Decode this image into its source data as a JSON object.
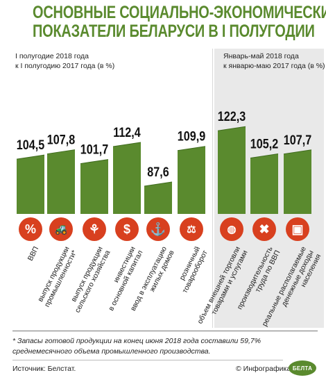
{
  "title_line1": "ОСНОВНЫЕ СОЦИАЛЬНО-ЭКОНОМИЧЕСКИЕ",
  "title_line2": "ПОКАЗАТЕЛИ БЕЛАРУСИ В I ПОЛУГОДИИ",
  "group_left_line1": "I полугодие 2018 года",
  "group_left_line2": "к I полугодию 2017 года (в %)",
  "group_right_line1": "Январь-май 2018 года",
  "group_right_line2": "к январю-маю 2017 года (в %)",
  "footnote_line1": "* Запасы готовой продукции на конец июня 2018 года составили 59,7%",
  "footnote_line2": "среднемесячного объема промышленного производства.",
  "source": "Источник: Белстат.",
  "credit": "© Инфографика",
  "logo_text": "БЕЛТА",
  "colors": {
    "bar": "#5a8a2e",
    "bar_light": "#6b9e3a",
    "icon": "#d8401f",
    "title": "#5a8a2e"
  },
  "chart_data": {
    "type": "bar",
    "groups": [
      "I полугодие 2018 года к I полугодию 2017 года (в %)",
      "Январь-май 2018 года к январю-маю 2017 года (в %)"
    ],
    "categories": [
      {
        "label": "ВВП",
        "value": 104.5,
        "value_label": "104,5",
        "icon": "percent-icon",
        "group": 0
      },
      {
        "label": "выпуск продукции промышленности*",
        "value": 107.8,
        "value_label": "107,8",
        "icon": "tractor-icon",
        "group": 0
      },
      {
        "label": "выпуск продукции сельского хозяйства",
        "value": 101.7,
        "value_label": "101,7",
        "icon": "wheat-icon",
        "group": 0
      },
      {
        "label": "инвестиции в основной капитал",
        "value": 112.4,
        "value_label": "112,4",
        "icon": "dollar-icon",
        "group": 0
      },
      {
        "label": "ввод в эксплуатацию жилых домов",
        "value": 87.6,
        "value_label": "87,6",
        "icon": "crane-hook-icon",
        "group": 0
      },
      {
        "label": "розничный товарооборот",
        "value": 109.9,
        "value_label": "109,9",
        "icon": "scales-icon",
        "group": 0
      },
      {
        "label": "объем внешней торговли товарами и услугами",
        "value": 122.3,
        "value_label": "122,3",
        "icon": "globe-icon",
        "group": 1
      },
      {
        "label": "производительность труда по ВВП",
        "value": 105.2,
        "value_label": "105,2",
        "icon": "tools-icon",
        "group": 1
      },
      {
        "label": "реальные располагаемые денежные доходы населения",
        "value": 107.7,
        "value_label": "107,7",
        "icon": "wallet-icon",
        "group": 1
      }
    ]
  }
}
